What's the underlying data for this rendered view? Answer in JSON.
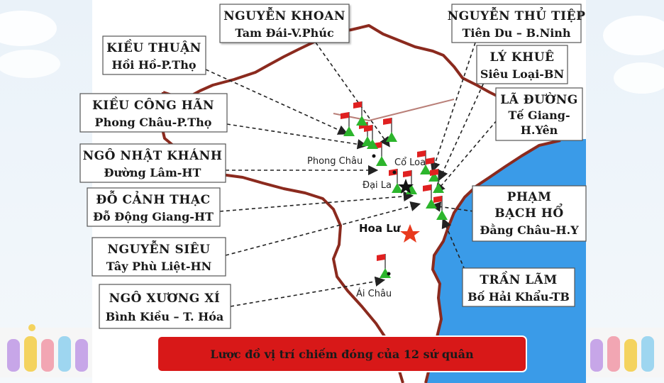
{
  "caption": "Lược đồ vị trí chiếm đóng của 12 sứ quân",
  "places": {
    "phong_chau": "Phong Châu",
    "co_loa": "Cổ Loa",
    "dai_la": "Đại La",
    "hoa_lu": "Hoa Lư",
    "ai_chau": "Ái Châu"
  },
  "warlords": [
    {
      "name": "NGUYỄN KHOAN",
      "place": "Tam Đái-V.Phúc"
    },
    {
      "name": "NGUYỄN THỦ TIỆP",
      "place": "Tiên Du – B.Ninh"
    },
    {
      "name": "KIỀU THUẬN",
      "place": "Hồi Hồ-P.Thọ"
    },
    {
      "name": "LÝ KHUÊ",
      "place": "Siêu Loại-BN"
    },
    {
      "name": "KIỀU CÔNG HÃN",
      "place": "Phong Châu-P.Thọ"
    },
    {
      "name": "LÃ ĐƯỜNG",
      "place": "Tế Giang-",
      "place2": "H.Yên"
    },
    {
      "name": "NGÔ NHẬT KHÁNH",
      "place": "Đường Lâm-HT"
    },
    {
      "name": "ĐỖ CẢNH THẠC",
      "place": "Đỗ Động Giang-HT"
    },
    {
      "name": "PHẠM",
      "name2": "BẠCH HỔ",
      "place": "Đằng Châu–H.Y"
    },
    {
      "name": "NGUYỄN SIÊU",
      "place": "Tây Phù Liệt-HN"
    },
    {
      "name": "TRẦN LÃM",
      "place": "Bố Hải Khẩu-TB"
    },
    {
      "name": "NGÔ XƯƠNG XÍ",
      "place": "Bình Kiều – T. Hóa"
    }
  ],
  "colors": {
    "sea": "#3a9be8",
    "land": "#ffffff",
    "border": "#8b2a1e",
    "flag": "#e02020",
    "triangle": "#2cb52c",
    "caption_bg": "#d81818"
  }
}
